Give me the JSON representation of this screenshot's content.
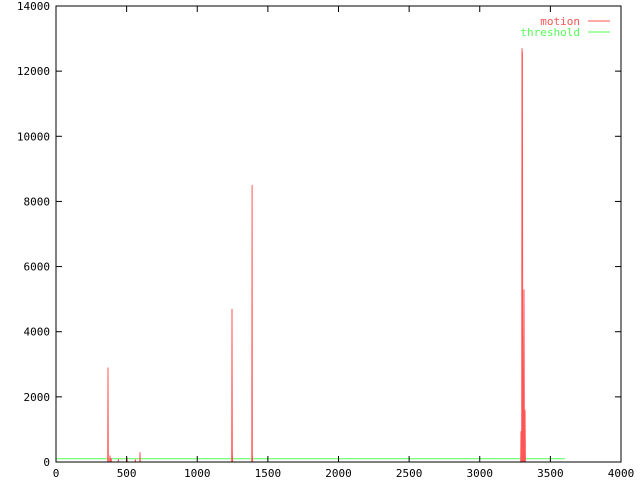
{
  "chart_data": {
    "type": "line",
    "title": "",
    "xlabel": "",
    "ylabel": "",
    "xlim": [
      0,
      4000
    ],
    "ylim": [
      0,
      14000
    ],
    "xticks": [
      0,
      500,
      1000,
      1500,
      2000,
      2500,
      3000,
      3500,
      4000
    ],
    "yticks": [
      0,
      2000,
      4000,
      6000,
      8000,
      10000,
      12000,
      14000
    ],
    "grid": false,
    "legend_position": "top-right",
    "series": [
      {
        "name": "motion",
        "color": "#ff5555",
        "points": [
          [
            0,
            0
          ],
          [
            366,
            0
          ],
          [
            368,
            2900
          ],
          [
            370,
            0
          ],
          [
            380,
            0
          ],
          [
            382,
            200
          ],
          [
            384,
            0
          ],
          [
            390,
            120
          ],
          [
            392,
            0
          ],
          [
            440,
            0
          ],
          [
            442,
            90
          ],
          [
            444,
            0
          ],
          [
            501,
            0
          ],
          [
            503,
            150
          ],
          [
            505,
            0
          ],
          [
            560,
            0
          ],
          [
            562,
            80
          ],
          [
            564,
            0
          ],
          [
            593,
            0
          ],
          [
            595,
            300
          ],
          [
            597,
            0
          ],
          [
            1244,
            0
          ],
          [
            1246,
            4700
          ],
          [
            1248,
            300
          ],
          [
            1250,
            0
          ],
          [
            1386,
            0
          ],
          [
            1388,
            8500
          ],
          [
            1390,
            300
          ],
          [
            1392,
            0
          ],
          [
            3290,
            0
          ],
          [
            3292,
            950
          ],
          [
            3295,
            0
          ],
          [
            3297,
            0
          ],
          [
            3299,
            12700
          ],
          [
            3301,
            0
          ],
          [
            3302,
            12600
          ],
          [
            3305,
            0
          ],
          [
            3310,
            0
          ],
          [
            3313,
            5300
          ],
          [
            3316,
            0
          ],
          [
            3318,
            0
          ],
          [
            3320,
            1600
          ],
          [
            3323,
            0
          ],
          [
            3604,
            0
          ]
        ]
      },
      {
        "name": "threshold",
        "color": "#55ff55",
        "points": [
          [
            0,
            100
          ],
          [
            3604,
            100
          ]
        ]
      }
    ]
  }
}
